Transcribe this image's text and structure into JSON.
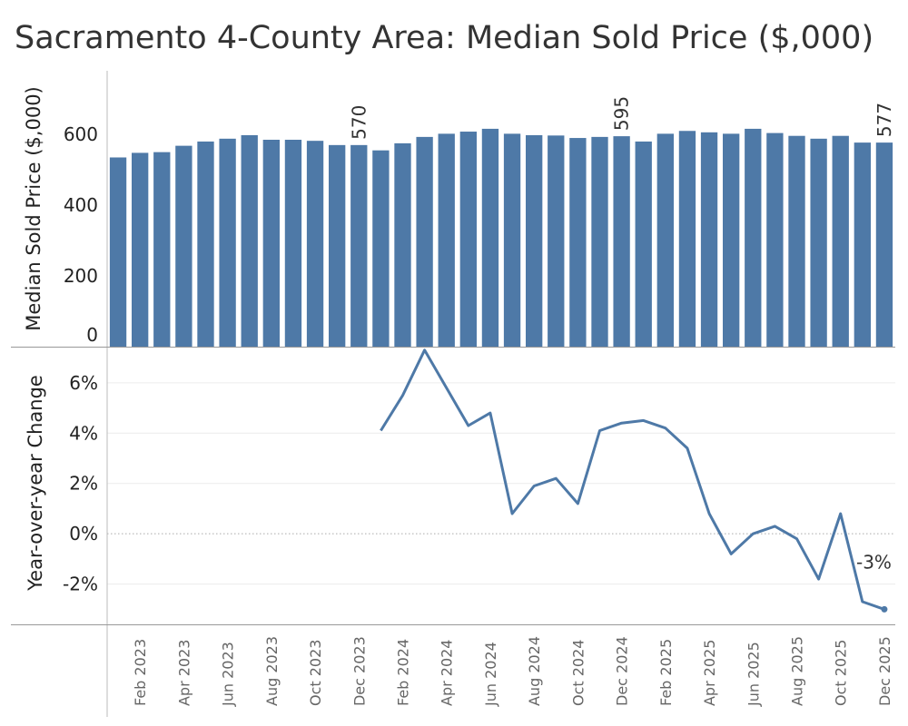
{
  "title": "Sacramento 4-County Area: Median Sold Price ($,000)",
  "colors": {
    "bar": "#4e79a7",
    "line": "#4e79a7",
    "axis": "#bbbbbb",
    "text": "#333333"
  },
  "chart_data": [
    {
      "type": "bar",
      "ylabel": "Median Sold Price ($,000)",
      "ylim": [
        0,
        780
      ],
      "yticks": [
        "0",
        "200",
        "400",
        "600"
      ],
      "grid": false,
      "categories": [
        "Jan 2023",
        "Feb 2023",
        "Mar 2023",
        "Apr 2023",
        "May 2023",
        "Jun 2023",
        "Jul 2023",
        "Aug 2023",
        "Sep 2023",
        "Oct 2023",
        "Nov 2023",
        "Dec 2023",
        "Jan 2024",
        "Feb 2024",
        "Mar 2024",
        "Apr 2024",
        "May 2024",
        "Jun 2024",
        "Jul 2024",
        "Aug 2024",
        "Sep 2024",
        "Oct 2024",
        "Nov 2024",
        "Dec 2024",
        "Jan 2025",
        "Feb 2025",
        "Mar 2025",
        "Apr 2025",
        "May 2025",
        "Jun 2025",
        "Jul 2025",
        "Aug 2025",
        "Sep 2025",
        "Oct 2025",
        "Nov 2025",
        "Dec 2025"
      ],
      "values": [
        535,
        548,
        550,
        568,
        580,
        588,
        598,
        585,
        585,
        582,
        570,
        570,
        555,
        575,
        593,
        602,
        608,
        616,
        602,
        598,
        597,
        590,
        593,
        595,
        580,
        602,
        610,
        606,
        602,
        616,
        604,
        596,
        588,
        596,
        577,
        577
      ],
      "data_labels": [
        {
          "category": "Dec 2023",
          "text": "570"
        },
        {
          "category": "Dec 2024",
          "text": "595"
        },
        {
          "category": "Dec 2025",
          "text": "577"
        }
      ]
    },
    {
      "type": "line",
      "ylabel": "Year-over-year Change",
      "ylim": [
        -3.6,
        7.4
      ],
      "yticks": [
        "-2%",
        "0%",
        "2%",
        "4%",
        "6%"
      ],
      "grid": true,
      "categories": [
        "Jan 2024",
        "Feb 2024",
        "Mar 2024",
        "Apr 2024",
        "May 2024",
        "Jun 2024",
        "Jul 2024",
        "Aug 2024",
        "Sep 2024",
        "Oct 2024",
        "Nov 2024",
        "Dec 2024",
        "Jan 2025",
        "Feb 2025",
        "Mar 2025",
        "Apr 2025",
        "May 2025",
        "Jun 2025",
        "Jul 2025",
        "Aug 2025",
        "Sep 2025",
        "Oct 2025",
        "Nov 2025",
        "Dec 2025"
      ],
      "values": [
        4.1,
        5.5,
        7.3,
        5.8,
        4.3,
        4.8,
        0.8,
        1.9,
        2.2,
        1.2,
        4.1,
        4.4,
        4.5,
        4.2,
        3.4,
        0.8,
        -0.8,
        0.0,
        0.3,
        -0.2,
        -1.8,
        0.8,
        -2.7,
        -3.0
      ],
      "data_labels": [
        {
          "category": "Dec 2025",
          "text": "-3%"
        }
      ]
    }
  ],
  "x_axis": {
    "tick_labels": [
      "Feb 2023",
      "Apr 2023",
      "Jun 2023",
      "Aug 2023",
      "Oct 2023",
      "Dec 2023",
      "Feb 2024",
      "Apr 2024",
      "Jun 2024",
      "Aug 2024",
      "Oct 2024",
      "Dec 2024",
      "Feb 2025",
      "Apr 2025",
      "Jun 2025",
      "Aug 2025",
      "Oct 2025",
      "Dec 2025"
    ]
  }
}
